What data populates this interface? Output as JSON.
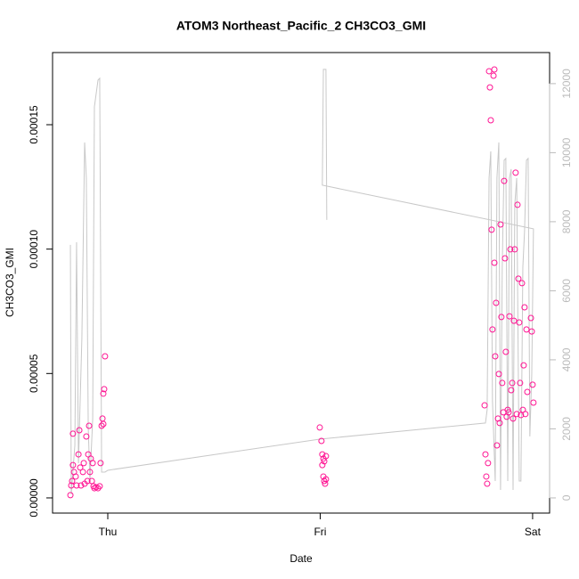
{
  "chart_data": {
    "type": "scatter",
    "title": "ATOM3 Northeast_Pacific_2 CH3CO3_GMI",
    "xlabel": "Date",
    "ylabel": "CH3CO3_GMI",
    "xlim": [
      -0.26,
      2.08
    ],
    "xticks": [
      {
        "value": 0,
        "label": "Thu"
      },
      {
        "value": 1,
        "label": "Fri"
      },
      {
        "value": 2,
        "label": "Sat"
      }
    ],
    "ylim": [
      -6.1e-06,
      0.000179
    ],
    "yticks": [
      {
        "value": 0,
        "label": "0.00000"
      },
      {
        "value": 5e-05,
        "label": "0.00005"
      },
      {
        "value": 0.0001,
        "label": "0.00010"
      },
      {
        "value": 0.00015,
        "label": "0.00015"
      }
    ],
    "y2lim": [
      -440,
      12900
    ],
    "y2ticks": [
      0,
      2000,
      4000,
      6000,
      8000,
      10000,
      12000
    ],
    "series": [
      {
        "type": "scatter",
        "color": "#ff1493",
        "x": [
          -0.176,
          -0.172,
          -0.168,
          -0.164,
          -0.164,
          -0.159,
          -0.151,
          -0.147,
          -0.138,
          -0.134,
          -0.13,
          -0.126,
          -0.117,
          -0.113,
          -0.109,
          -0.101,
          -0.096,
          -0.092,
          -0.088,
          -0.084,
          -0.08,
          -0.075,
          -0.071,
          -0.067,
          -0.063,
          -0.055,
          -0.046,
          -0.038,
          -0.034,
          -0.029,
          -0.025,
          -0.021,
          -0.017,
          -0.013,
          -0.021,
          0.998,
          1.006,
          1.01,
          1.015,
          1.019,
          1.027,
          1.01,
          1.015,
          1.019,
          1.023,
          1.027,
          1.774,
          1.778,
          1.782,
          1.786,
          1.79,
          1.795,
          1.799,
          1.803,
          1.807,
          1.811,
          1.816,
          1.82,
          1.82,
          1.824,
          1.828,
          1.832,
          1.837,
          1.841,
          1.845,
          1.849,
          1.853,
          1.857,
          1.862,
          1.866,
          1.87,
          1.874,
          1.878,
          1.883,
          1.887,
          1.891,
          1.895,
          1.899,
          1.904,
          1.908,
          1.912,
          1.916,
          1.92,
          1.925,
          1.929,
          1.933,
          1.937,
          1.941,
          1.945,
          1.95,
          1.954,
          1.958,
          1.962,
          1.966,
          1.971,
          1.975,
          1.992,
          1.996,
          2.0,
          2.004
        ],
        "values": [
          1.1e-06,
          5e-06,
          6.8e-06,
          2.58e-05,
          1.32e-05,
          1.04e-05,
          8.6e-06,
          5e-06,
          1.75e-05,
          2.72e-05,
          1.22e-05,
          5e-06,
          1.04e-05,
          1.4e-05,
          5.7e-06,
          2.47e-05,
          6.8e-06,
          1.75e-05,
          2.9e-05,
          1.04e-05,
          1.58e-05,
          6.8e-06,
          1.4e-05,
          4.7e-06,
          3.9e-06,
          4.3e-06,
          3.9e-06,
          4.7e-06,
          1.4e-05,
          2.9e-05,
          3.19e-05,
          4.19e-05,
          4.37e-05,
          5.69e-05,
          2.97e-05,
          2.83e-05,
          2.29e-05,
          1.75e-05,
          1.58e-05,
          1.47e-05,
          1.68e-05,
          1.32e-05,
          8.6e-06,
          6.8e-06,
          5.7e-06,
          7.5e-06,
          3.72e-05,
          1.75e-05,
          8.6e-06,
          5.7e-06,
          1.4e-05,
          0.0001715,
          0.000165,
          0.0001518,
          0.0001078,
          6.77e-05,
          0.0001697,
          9.45e-05,
          0.0001722,
          5.69e-05,
          7.84e-05,
          2.11e-05,
          3.19e-05,
          4.98e-05,
          3.01e-05,
          0.0001099,
          7.27e-05,
          4.62e-05,
          3.44e-05,
          0.0001274,
          9.63e-05,
          5.87e-05,
          3.26e-05,
          3.54e-05,
          3.44e-05,
          7.3e-05,
          9.99e-05,
          4.33e-05,
          4.62e-05,
          3.19e-05,
          7.12e-05,
          9.99e-05,
          0.0001307,
          3.37e-05,
          0.0001178,
          8.81e-05,
          7.05e-05,
          4.62e-05,
          3.33e-05,
          8.63e-05,
          3.54e-05,
          5.33e-05,
          7.66e-05,
          3.37e-05,
          6.77e-05,
          4.26e-05,
          7.23e-05,
          6.69e-05,
          4.55e-05,
          3.83e-05
        ]
      },
      {
        "type": "line",
        "color": "#c8c8c8",
        "axis": "y2",
        "x": [
          -0.176,
          -0.172,
          -0.155,
          -0.147,
          -0.138,
          -0.122,
          -0.109,
          -0.101,
          -0.092,
          -0.084,
          -0.071,
          -0.063,
          -0.046,
          -0.038,
          -0.029,
          -0.017,
          -0.013,
          0.0,
          0.998,
          1.778,
          1.786,
          1.795,
          1.803,
          1.811,
          1.824,
          1.832,
          1.841,
          1.849,
          1.857,
          1.866,
          1.874,
          1.883,
          1.891,
          1.899,
          1.908,
          1.916,
          1.925,
          1.937,
          1.945,
          1.954,
          1.962,
          1.971,
          1.979,
          1.987,
          1.996,
          2.004,
          1.01,
          1.015,
          1.027,
          1.031
        ],
        "values": [
          7329,
          103,
          1523,
          7406,
          1006,
          4619,
          10297,
          9265,
          2039,
          490,
          2297,
          11329,
          12103,
          12155,
          748,
          748,
          748,
          800,
          1703,
          2168,
          2555,
          9265,
          10039,
          2813,
          490,
          9265,
          10297,
          232,
          6684,
          9781,
          9832,
          490,
          9265,
          9523,
          232,
          8490,
          9265,
          490,
          490,
          6684,
          7716,
          9781,
          9832,
          1781,
          3587,
          7794,
          9058,
          12413,
          12413,
          8052
        ]
      }
    ]
  }
}
